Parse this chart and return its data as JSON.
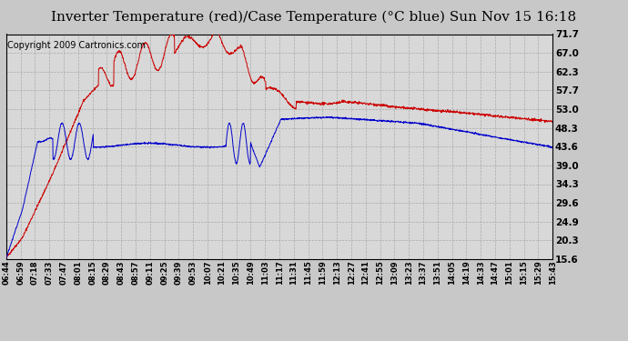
{
  "title": "Inverter Temperature (red)/Case Temperature (°C blue) Sun Nov 15 16:18",
  "copyright": "Copyright 2009 Cartronics.com",
  "yticks": [
    15.6,
    20.3,
    24.9,
    29.6,
    34.3,
    39.0,
    43.6,
    48.3,
    53.0,
    57.7,
    62.3,
    67.0,
    71.7
  ],
  "ymin": 15.6,
  "ymax": 71.7,
  "xtick_labels": [
    "06:44",
    "06:59",
    "07:18",
    "07:33",
    "07:47",
    "08:01",
    "08:15",
    "08:29",
    "08:43",
    "08:57",
    "09:11",
    "09:25",
    "09:39",
    "09:53",
    "10:07",
    "10:21",
    "10:35",
    "10:49",
    "11:03",
    "11:17",
    "11:31",
    "11:45",
    "11:59",
    "12:13",
    "12:27",
    "12:41",
    "12:55",
    "13:09",
    "13:23",
    "13:37",
    "13:51",
    "14:05",
    "14:19",
    "14:33",
    "14:47",
    "15:01",
    "15:15",
    "15:29",
    "15:43"
  ],
  "background_color": "#c8c8c8",
  "plot_bg_color": "#d8d8d8",
  "red_color": "#cc0000",
  "blue_color": "#0000cc",
  "grid_color": "#aaaaaa",
  "title_fontsize": 11,
  "copyright_fontsize": 7
}
